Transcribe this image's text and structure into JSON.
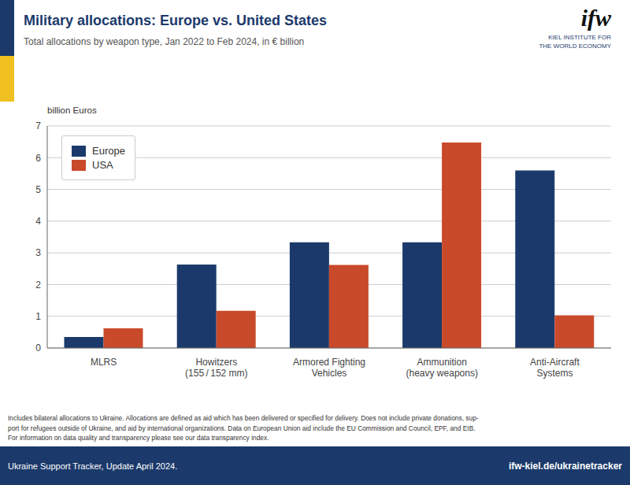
{
  "chart_data": {
    "type": "bar",
    "title": "Military allocations: Europe vs. United States",
    "subtitle": "Total allocations by weapon type, Jan 2022 to Feb 2024, in € billion",
    "ylabel": "billion Euros",
    "categories": [
      "MLRS",
      "Howitzers\n(155 / 152 mm)",
      "Armored Fighting\nVehicles",
      "Ammunition\n(heavy weapons)",
      "Anti-Aircraft\nSystems"
    ],
    "series": [
      {
        "name": "Europe",
        "color": "#1b3a6b",
        "values": [
          0.35,
          2.63,
          3.33,
          3.33,
          5.6
        ]
      },
      {
        "name": "USA",
        "color": "#c94a2b",
        "values": [
          0.62,
          1.17,
          2.62,
          6.48,
          1.03
        ]
      }
    ],
    "ylim": [
      0,
      7
    ],
    "yticks": [
      0,
      1,
      2,
      3,
      4,
      5,
      6,
      7
    ],
    "grid": true,
    "legend": "upper left",
    "annotations": [
      "Includes bilateral allocations to Ukraine. Allocations are defined as aid which has been delivered or specified for delivery. Does not include private donations, sup-\nport for refugees outside of Ukraine, and aid by international organizations. Data on European Union aid include the EU Commission and Council, EPF, and EIB.\nFor information on data quality and transparency please see our data transparency index.",
      "Ukraine Support Tracker, Update April 2024.",
      "ifw-kiel.de/ukrainetracker",
      "ifw",
      "KIEL INSTITUTE FOR\nTHE WORLD ECONOMY"
    ]
  }
}
